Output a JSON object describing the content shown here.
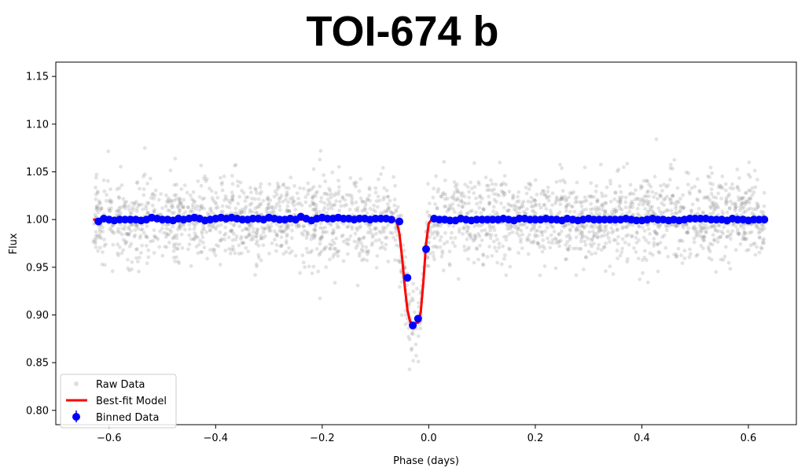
{
  "chart_data": {
    "type": "scatter",
    "title": "TOI-674 b",
    "xlabel": "Phase (days)",
    "ylabel": "Flux",
    "xlim": [
      -0.7,
      0.69
    ],
    "ylim": [
      0.785,
      1.165
    ],
    "xticks": [
      -0.6,
      -0.4,
      -0.2,
      0.0,
      0.2,
      0.4,
      0.6
    ],
    "xtick_labels": [
      "−0.6",
      "−0.4",
      "−0.2",
      "0.0",
      "0.2",
      "0.4",
      "0.6"
    ],
    "yticks": [
      0.8,
      0.85,
      0.9,
      0.95,
      1.0,
      1.05,
      1.1,
      1.15
    ],
    "ytick_labels": [
      "0.80",
      "0.85",
      "0.90",
      "0.95",
      "1.00",
      "1.05",
      "1.10",
      "1.15"
    ],
    "grid": false,
    "legend_position": "lower-left",
    "series": [
      {
        "name": "Raw Data",
        "kind": "scatter",
        "color": "#808080",
        "description_stats": {
          "x_range": [
            -0.63,
            0.63
          ],
          "baseline": 1.0,
          "scatter_sd": 0.022,
          "point_count": 2600
        }
      },
      {
        "name": "Best-fit Model",
        "kind": "line",
        "color": "#ff0000",
        "x": [
          -0.63,
          -0.07,
          -0.06,
          -0.055,
          -0.05,
          -0.045,
          -0.04,
          -0.035,
          -0.03,
          -0.02,
          -0.015,
          -0.01,
          -0.005,
          0.0,
          0.005,
          0.63
        ],
        "y": [
          1.0,
          1.0,
          0.998,
          0.985,
          0.96,
          0.93,
          0.905,
          0.893,
          0.891,
          0.892,
          0.903,
          0.935,
          0.975,
          0.996,
          1.0,
          1.0
        ]
      },
      {
        "name": "Binned Data",
        "kind": "scatter",
        "color": "#0000ff",
        "x": [
          -0.62,
          -0.61,
          -0.6,
          -0.59,
          -0.58,
          -0.57,
          -0.56,
          -0.55,
          -0.54,
          -0.53,
          -0.52,
          -0.51,
          -0.5,
          -0.49,
          -0.48,
          -0.47,
          -0.46,
          -0.45,
          -0.44,
          -0.43,
          -0.42,
          -0.41,
          -0.4,
          -0.39,
          -0.38,
          -0.37,
          -0.36,
          -0.35,
          -0.34,
          -0.33,
          -0.32,
          -0.31,
          -0.3,
          -0.29,
          -0.28,
          -0.27,
          -0.26,
          -0.25,
          -0.24,
          -0.23,
          -0.22,
          -0.21,
          -0.2,
          -0.19,
          -0.18,
          -0.17,
          -0.16,
          -0.15,
          -0.14,
          -0.13,
          -0.12,
          -0.11,
          -0.1,
          -0.09,
          -0.08,
          -0.07,
          -0.055,
          -0.04,
          -0.03,
          -0.02,
          -0.005,
          0.01,
          0.02,
          0.03,
          0.04,
          0.05,
          0.06,
          0.07,
          0.08,
          0.09,
          0.1,
          0.11,
          0.12,
          0.13,
          0.14,
          0.15,
          0.16,
          0.17,
          0.18,
          0.19,
          0.2,
          0.21,
          0.22,
          0.23,
          0.24,
          0.25,
          0.26,
          0.27,
          0.28,
          0.29,
          0.3,
          0.31,
          0.32,
          0.33,
          0.34,
          0.35,
          0.36,
          0.37,
          0.38,
          0.39,
          0.4,
          0.41,
          0.42,
          0.43,
          0.44,
          0.45,
          0.46,
          0.47,
          0.48,
          0.49,
          0.5,
          0.51,
          0.52,
          0.53,
          0.54,
          0.55,
          0.56,
          0.57,
          0.58,
          0.59,
          0.6,
          0.61,
          0.62,
          0.63
        ],
        "y": [
          0.998,
          1.001,
          1.0,
          0.999,
          1.0,
          1.0,
          1.0,
          1.0,
          0.999,
          1.0,
          1.002,
          1.001,
          1.0,
          1.0,
          0.999,
          1.001,
          1.0,
          1.001,
          1.002,
          1.001,
          0.999,
          1.0,
          1.001,
          1.002,
          1.001,
          1.002,
          1.001,
          1.0,
          1.0,
          1.001,
          1.001,
          1.0,
          1.002,
          1.001,
          1.0,
          1.0,
          1.001,
          1.0,
          1.003,
          1.001,
          0.999,
          1.001,
          1.002,
          1.001,
          1.001,
          1.002,
          1.001,
          1.001,
          1.0,
          1.001,
          1.001,
          1.0,
          1.001,
          1.001,
          1.001,
          1.0,
          0.998,
          0.939,
          0.889,
          0.896,
          0.969,
          1.001,
          1.0,
          1.0,
          0.999,
          0.999,
          1.001,
          1.0,
          0.999,
          1.0,
          1.0,
          1.0,
          1.0,
          1.0,
          1.001,
          1.0,
          0.999,
          1.001,
          1.001,
          1.0,
          1.0,
          1.0,
          1.001,
          1.0,
          1.0,
          0.999,
          1.001,
          1.0,
          0.999,
          1.0,
          1.001,
          1.0,
          1.0,
          1.0,
          1.0,
          1.0,
          1.0,
          1.001,
          1.0,
          0.999,
          0.999,
          1.0,
          1.001,
          1.0,
          1.0,
          0.999,
          1.0,
          0.999,
          1.0,
          1.001,
          1.001,
          1.001,
          1.001,
          1.0,
          1.0,
          1.0,
          0.999,
          1.001,
          1.0,
          1.0,
          0.999,
          1.0,
          1.0,
          1.0
        ]
      }
    ]
  }
}
